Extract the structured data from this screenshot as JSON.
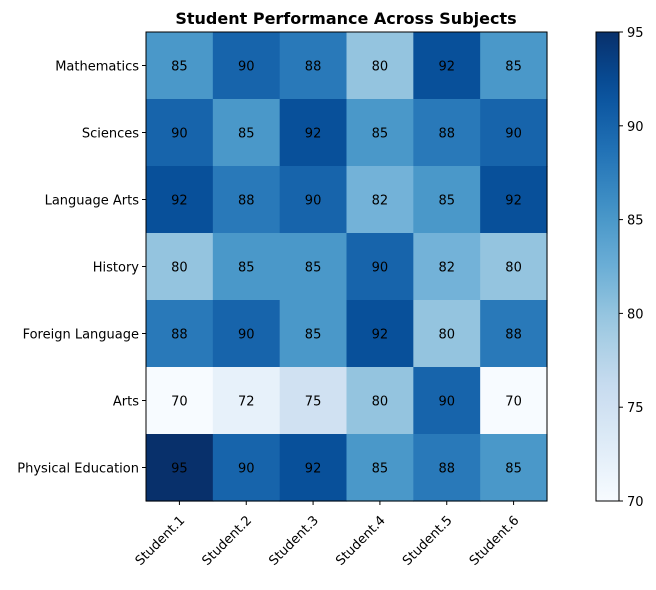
{
  "chart_data": {
    "type": "heatmap",
    "title": "Student Performance Across Subjects",
    "xlabel": "",
    "ylabel": "",
    "x_categories": [
      "Student.1",
      "Student.2",
      "Student.3",
      "Student.4",
      "Student.5",
      "Student.6"
    ],
    "y_categories": [
      "Mathematics",
      "Sciences",
      "Language Arts",
      "History",
      "Foreign Language",
      "Arts",
      "Physical Education"
    ],
    "values": [
      [
        85,
        90,
        88,
        80,
        92,
        85
      ],
      [
        90,
        85,
        92,
        85,
        88,
        90
      ],
      [
        92,
        88,
        90,
        82,
        85,
        92
      ],
      [
        80,
        85,
        85,
        90,
        82,
        80
      ],
      [
        88,
        90,
        85,
        92,
        80,
        88
      ],
      [
        70,
        72,
        75,
        80,
        90,
        70
      ],
      [
        95,
        90,
        92,
        85,
        88,
        85
      ]
    ],
    "colormap": "Blues",
    "vmin": 70,
    "vmax": 95,
    "colorbar_ticks": [
      70,
      75,
      80,
      85,
      90,
      95
    ],
    "colorbar_tick_labels": [
      "70",
      "75",
      "80",
      "85",
      "90",
      "95"
    ]
  }
}
